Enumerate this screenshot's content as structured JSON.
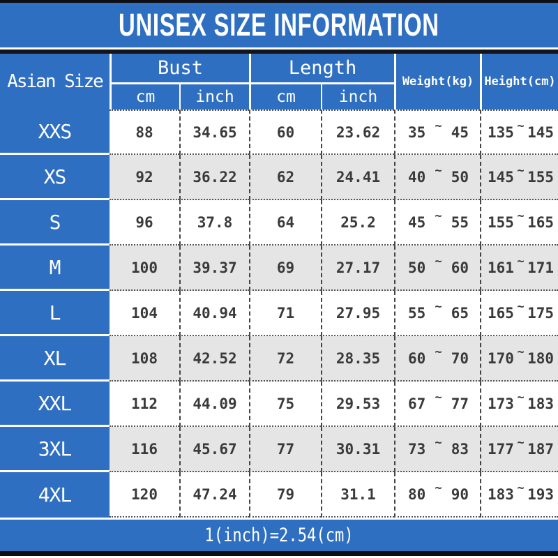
{
  "title": "UNISEX SIZE INFORMATION",
  "footer_note": "1(inch)=2.54(cm)",
  "colors": {
    "accent_blue": "#2e6fc1",
    "row_alternate": "#e6e5e6",
    "data_text": "#3a3a3a",
    "frame_bar": "#0d0d12"
  },
  "table": {
    "tilde": "~",
    "header": {
      "size_column": "Asian Size",
      "bust_group": "Bust",
      "length_group": "Length",
      "unit_cm": "cm",
      "unit_inch": "inch",
      "weight_column": "Weight(kg)",
      "height_column": "Height(cm)"
    },
    "rows": [
      {
        "size": "XXS",
        "bust_cm": "88",
        "bust_inch": "34.65",
        "length_cm": "60",
        "length_inch": "23.62",
        "weight_min": "35",
        "weight_max": "45",
        "height_min": "135",
        "height_max": "145"
      },
      {
        "size": "XS",
        "bust_cm": "92",
        "bust_inch": "36.22",
        "length_cm": "62",
        "length_inch": "24.41",
        "weight_min": "40",
        "weight_max": "50",
        "height_min": "145",
        "height_max": "155"
      },
      {
        "size": "S",
        "bust_cm": "96",
        "bust_inch": "37.8",
        "length_cm": "64",
        "length_inch": "25.2",
        "weight_min": "45",
        "weight_max": "55",
        "height_min": "155",
        "height_max": "165"
      },
      {
        "size": "M",
        "bust_cm": "100",
        "bust_inch": "39.37",
        "length_cm": "69",
        "length_inch": "27.17",
        "weight_min": "50",
        "weight_max": "60",
        "height_min": "161",
        "height_max": "171"
      },
      {
        "size": "L",
        "bust_cm": "104",
        "bust_inch": "40.94",
        "length_cm": "71",
        "length_inch": "27.95",
        "weight_min": "55",
        "weight_max": "65",
        "height_min": "165",
        "height_max": "175"
      },
      {
        "size": "XL",
        "bust_cm": "108",
        "bust_inch": "42.52",
        "length_cm": "72",
        "length_inch": "28.35",
        "weight_min": "60",
        "weight_max": "70",
        "height_min": "170",
        "height_max": "180"
      },
      {
        "size": "XXL",
        "bust_cm": "112",
        "bust_inch": "44.09",
        "length_cm": "75",
        "length_inch": "29.53",
        "weight_min": "67",
        "weight_max": "77",
        "height_min": "173",
        "height_max": "183"
      },
      {
        "size": "3XL",
        "bust_cm": "116",
        "bust_inch": "45.67",
        "length_cm": "77",
        "length_inch": "30.31",
        "weight_min": "73",
        "weight_max": "83",
        "height_min": "177",
        "height_max": "187"
      },
      {
        "size": "4XL",
        "bust_cm": "120",
        "bust_inch": "47.24",
        "length_cm": "79",
        "length_inch": "31.1",
        "weight_min": "80",
        "weight_max": "90",
        "height_min": "183",
        "height_max": "193"
      }
    ]
  }
}
